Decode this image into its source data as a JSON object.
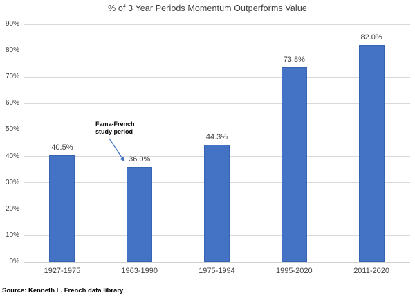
{
  "title": "% of 3 Year Periods Momentum Outperforms Value",
  "source_note": "Source: Kenneth L. French data library",
  "annotation": {
    "line1": "Fama-French",
    "line2": "study period"
  },
  "colors": {
    "bar_fill": "#4472C4",
    "bar_border": "#3565B1",
    "gridline": "#D9D9D9",
    "text": "#404040",
    "arrow": "#4472C4"
  },
  "chart_data": {
    "type": "bar",
    "title": "% of 3 Year Periods Momentum Outperforms Value",
    "categories": [
      "1927-1975",
      "1963-1990",
      "1975-1994",
      "1995-2020",
      "2011-2020"
    ],
    "values": [
      40.5,
      36.0,
      44.3,
      73.8,
      82.0
    ],
    "data_labels": [
      "40.5%",
      "36.0%",
      "44.3%",
      "73.8%",
      "82.0%"
    ],
    "xlabel": "",
    "ylabel": "",
    "ylim": [
      0,
      90
    ],
    "y_tick_step": 10,
    "y_tick_labels": [
      "0%",
      "10%",
      "20%",
      "30%",
      "40%",
      "50%",
      "60%",
      "70%",
      "80%",
      "90%"
    ],
    "grid": true,
    "legend_position": "none",
    "annotation": {
      "text": "Fama-French study period",
      "target_category": "1963-1990",
      "target_value_label": "36.0%"
    },
    "source_note": "Source: Kenneth L. French data library"
  }
}
